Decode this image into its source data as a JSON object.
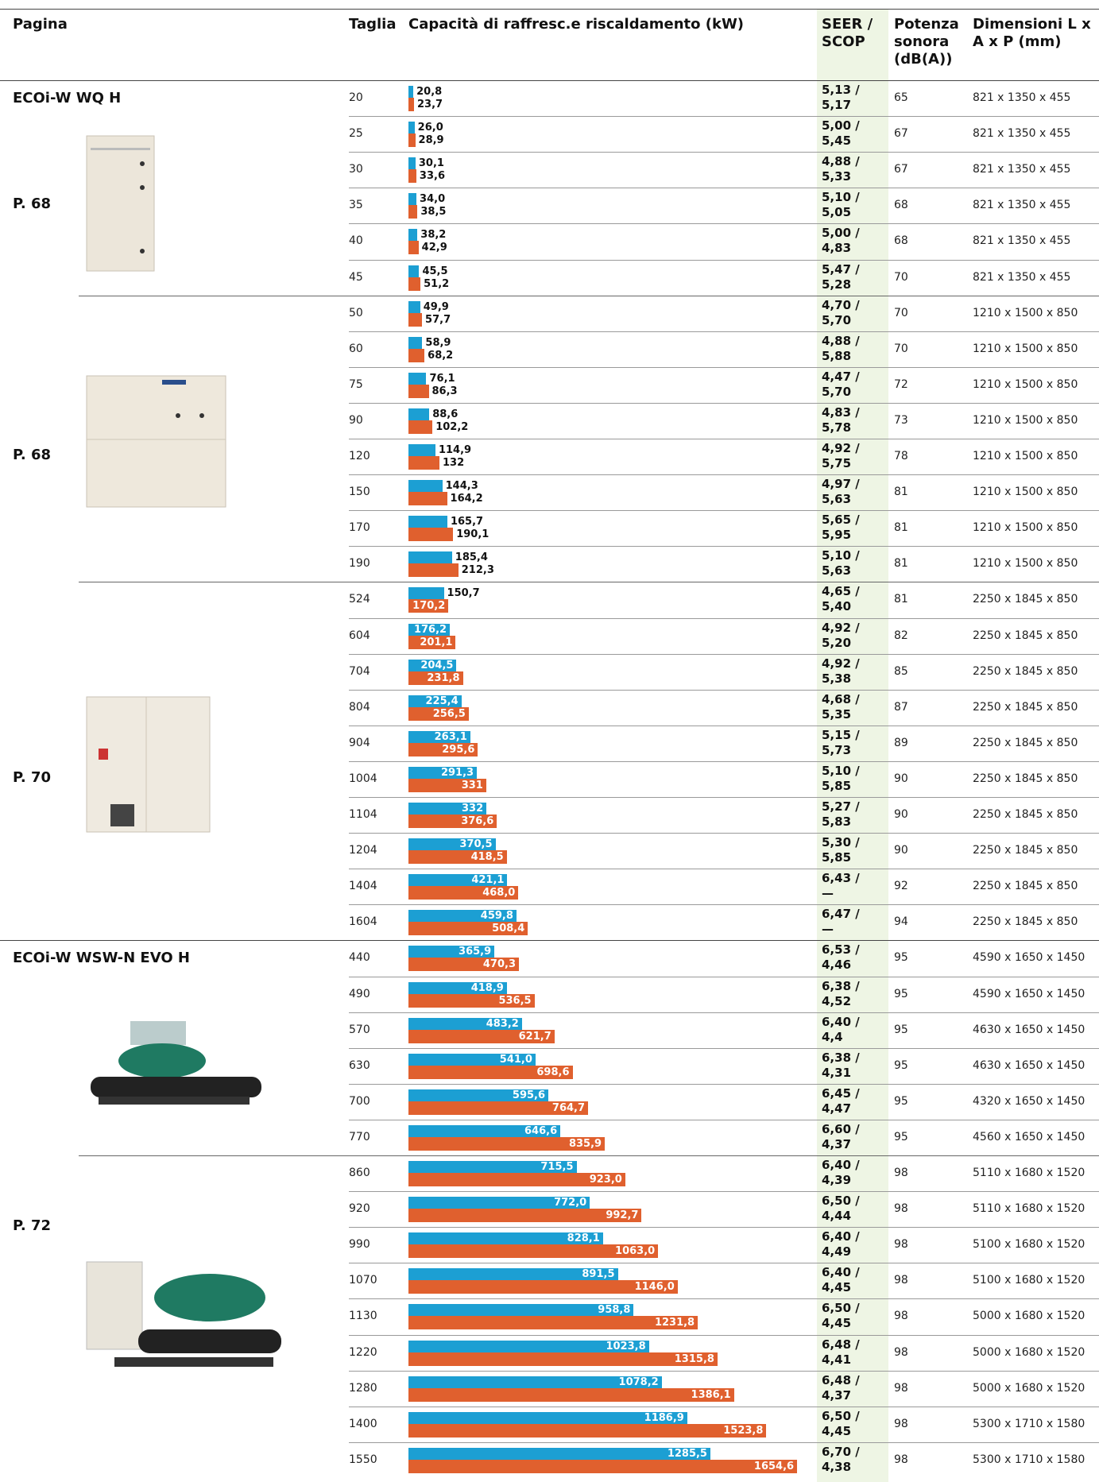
{
  "header": {
    "page": "Pagina",
    "size": "Taglia",
    "capacity": "Capacità di raffresc.e riscaldamento (kW)",
    "seer_scop": "SEER / SCOP",
    "noise": "Potenza sonora (dB(A))",
    "dims": "Dimensioni L x A x P (mm)"
  },
  "colors": {
    "cooling": "#1c9fd3",
    "heating": "#e0602e"
  },
  "sections": [
    {
      "model": "ECOi-W WQ H",
      "groups": [
        {
          "page": "P. 68",
          "rows": [
            [
              "20",
              20.8,
              "20,8",
              23.7,
              "23,7",
              "5,13 /",
              "5,17",
              "65",
              "821 x 1350 x 455"
            ],
            [
              "25",
              26.0,
              "26,0",
              28.9,
              "28,9",
              "5,00 /",
              "5,45",
              "67",
              "821 x 1350 x 455"
            ],
            [
              "30",
              30.1,
              "30,1",
              33.6,
              "33,6",
              "4,88 /",
              "5,33",
              "67",
              "821 x 1350 x 455"
            ],
            [
              "35",
              34.0,
              "34,0",
              38.5,
              "38,5",
              "5,10 /",
              "5,05",
              "68",
              "821 x 1350 x 455"
            ],
            [
              "40",
              38.2,
              "38,2",
              42.9,
              "42,9",
              "5,00 /",
              "4,83",
              "68",
              "821 x 1350 x 455"
            ],
            [
              "45",
              45.5,
              "45,5",
              51.2,
              "51,2",
              "5,47 /",
              "5,28",
              "70",
              "821 x 1350 x 455"
            ]
          ]
        },
        {
          "page": "P. 68",
          "rows": [
            [
              "50",
              49.9,
              "49,9",
              57.7,
              "57,7",
              "4,70 /",
              "5,70",
              "70",
              "1210 x 1500 x 850"
            ],
            [
              "60",
              58.9,
              "58,9",
              68.2,
              "68,2",
              "4,88 /",
              "5,88",
              "70",
              "1210 x 1500 x 850"
            ],
            [
              "75",
              76.1,
              "76,1",
              86.3,
              "86,3",
              "4,47 /",
              "5,70",
              "72",
              "1210 x 1500 x 850"
            ],
            [
              "90",
              88.6,
              "88,6",
              102.2,
              "102,2",
              "4,83 /",
              "5,78",
              "73",
              "1210 x 1500 x 850"
            ],
            [
              "120",
              114.9,
              "114,9",
              132,
              "132",
              "4,92 /",
              "5,75",
              "78",
              "1210 x 1500 x 850"
            ],
            [
              "150",
              144.3,
              "144,3",
              164.2,
              "164,2",
              "4,97 /",
              "5,63",
              "81",
              "1210 x 1500 x 850"
            ],
            [
              "170",
              165.7,
              "165,7",
              190.1,
              "190,1",
              "5,65 /",
              "5,95",
              "81",
              "1210 x 1500 x 850"
            ],
            [
              "190",
              185.4,
              "185,4",
              212.3,
              "212,3",
              "5,10 /",
              "5,63",
              "81",
              "1210 x 1500 x 850"
            ]
          ]
        },
        {
          "page": "P. 70",
          "labels": "inside",
          "rows": [
            [
              "524",
              150.7,
              "150,7",
              170.2,
              "170,2",
              "4,65 /",
              "5,40",
              "81",
              "2250 x 1845 x 850"
            ],
            [
              "604",
              176.2,
              "176,2",
              201.1,
              "201,1",
              "4,92 /",
              "5,20",
              "82",
              "2250 x 1845 x 850"
            ],
            [
              "704",
              204.5,
              "204,5",
              231.8,
              "231,8",
              "4,92 /",
              "5,38",
              "85",
              "2250 x 1845 x 850"
            ],
            [
              "804",
              225.4,
              "225,4",
              256.5,
              "256,5",
              "4,68 /",
              "5,35",
              "87",
              "2250 x 1845 x 850"
            ],
            [
              "904",
              263.1,
              "263,1",
              295.6,
              "295,6",
              "5,15 /",
              "5,73",
              "89",
              "2250 x 1845 x 850"
            ],
            [
              "1004",
              291.3,
              "291,3",
              331,
              "331",
              "5,10 /",
              "5,85",
              "90",
              "2250 x 1845 x 850"
            ],
            [
              "1104",
              332,
              "332",
              376.6,
              "376,6",
              "5,27 /",
              "5,83",
              "90",
              "2250 x 1845 x 850"
            ],
            [
              "1204",
              370.5,
              "370,5",
              418.5,
              "418,5",
              "5,30 /",
              "5,85",
              "90",
              "2250 x 1845 x 850"
            ],
            [
              "1404",
              421.1,
              "421,1",
              468.0,
              "468,0",
              "6,43 /",
              "—",
              "92",
              "2250 x 1845 x 850"
            ],
            [
              "1604",
              459.8,
              "459,8",
              508.4,
              "508,4",
              "6,47 /",
              "—",
              "94",
              "2250 x 1845 x 850"
            ]
          ]
        }
      ]
    },
    {
      "model": "ECOi-W WSW-N EVO H",
      "page": "P. 72",
      "groups": [
        {
          "labels": "inside",
          "rows": [
            [
              "440",
              365.9,
              "365,9",
              470.3,
              "470,3",
              "6,53 /",
              "4,46",
              "95",
              "4590 x 1650 x 1450"
            ],
            [
              "490",
              418.9,
              "418,9",
              536.5,
              "536,5",
              "6,38 /",
              "4,52",
              "95",
              "4590 x 1650 x 1450"
            ],
            [
              "570",
              483.2,
              "483,2",
              621.7,
              "621,7",
              "6,40 /",
              "4,4",
              "95",
              "4630 x 1650 x 1450"
            ],
            [
              "630",
              541.0,
              "541,0",
              698.6,
              "698,6",
              "6,38 /",
              "4,31",
              "95",
              "4630 x 1650 x 1450"
            ],
            [
              "700",
              595.6,
              "595,6",
              764.7,
              "764,7",
              "6,45 /",
              "4,47",
              "95",
              "4320 x 1650 x 1450"
            ],
            [
              "770",
              646.6,
              "646,6",
              835.9,
              "835,9",
              "6,60 /",
              "4,37",
              "95",
              "4560 x 1650 x 1450"
            ]
          ]
        },
        {
          "labels": "inside",
          "rows": [
            [
              "860",
              715.5,
              "715,5",
              923.0,
              "923,0",
              "6,40 /",
              "4,39",
              "98",
              "5110 x 1680 x 1520"
            ],
            [
              "920",
              772.0,
              "772,0",
              992.7,
              "992,7",
              "6,50 /",
              "4,44",
              "98",
              "5110 x 1680 x 1520"
            ],
            [
              "990",
              828.1,
              "828,1",
              1063.0,
              "1063,0",
              "6,40 /",
              "4,49",
              "98",
              "5100 x 1680 x 1520"
            ],
            [
              "1070",
              891.5,
              "891,5",
              1146.0,
              "1146,0",
              "6,40 /",
              "4,45",
              "98",
              "5100 x 1680 x 1520"
            ],
            [
              "1130",
              958.8,
              "958,8",
              1231.8,
              "1231,8",
              "6,50 /",
              "4,45",
              "98",
              "5000 x 1680 x 1520"
            ],
            [
              "1220",
              1023.8,
              "1023,8",
              1315.8,
              "1315,8",
              "6,48 /",
              "4,41",
              "98",
              "5000 x 1680 x 1520"
            ],
            [
              "1280",
              1078.2,
              "1078,2",
              1386.1,
              "1386,1",
              "6,48 /",
              "4,37",
              "98",
              "5000 x 1680 x 1520"
            ],
            [
              "1400",
              1186.9,
              "1186,9",
              1523.8,
              "1523,8",
              "6,50 /",
              "4,45",
              "98",
              "5300 x 1710 x 1580"
            ],
            [
              "1550",
              1285.5,
              "1285,5",
              1654.6,
              "1654,6",
              "6,70 /",
              "4,38",
              "98",
              "5300 x 1710 x 1580"
            ]
          ]
        }
      ]
    }
  ]
}
